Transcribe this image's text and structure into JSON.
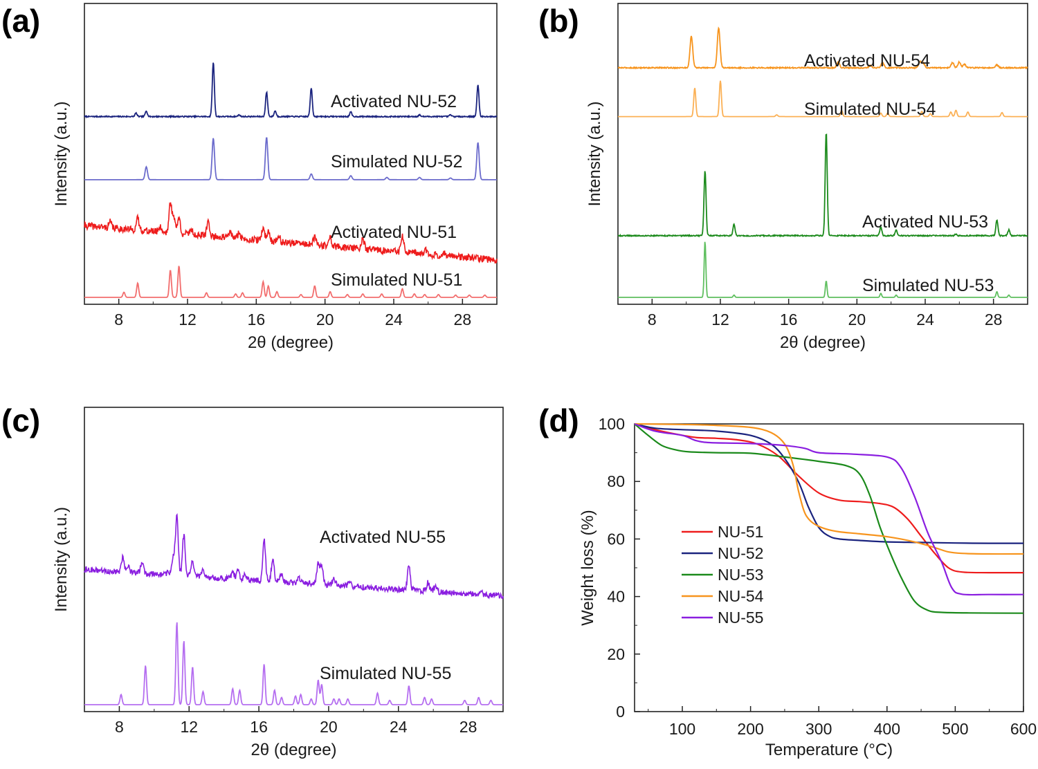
{
  "chart_data": [
    {
      "panel": "(a)",
      "type": "line",
      "xlabel": "2θ (degree)",
      "ylabel": "Intensity (a.u.)",
      "xlim": [
        6,
        30
      ],
      "xticks": [
        "8",
        "12",
        "16",
        "20",
        "24",
        "28"
      ],
      "series": [
        {
          "name": "Activated NU-52",
          "color": "#1a237e",
          "baseline": 0.63,
          "noise": 0.002,
          "sigma": 0.06,
          "peaks": [
            [
              9.0,
              0.012
            ],
            [
              9.6,
              0.02
            ],
            [
              13.5,
              0.19
            ],
            [
              15.0,
              0.006
            ],
            [
              16.6,
              0.085
            ],
            [
              17.1,
              0.02
            ],
            [
              19.2,
              0.1
            ],
            [
              21.5,
              0.016
            ],
            [
              25.5,
              0.006
            ],
            [
              27.3,
              0.006
            ],
            [
              28.9,
              0.11
            ]
          ]
        },
        {
          "name": "Simulated NU-52",
          "color": "#6b6bcc",
          "baseline": 0.41,
          "noise": 0.0,
          "sigma": 0.07,
          "peaks": [
            [
              9.6,
              0.045
            ],
            [
              13.5,
              0.145
            ],
            [
              16.6,
              0.148
            ],
            [
              19.2,
              0.02
            ],
            [
              21.5,
              0.014
            ],
            [
              23.6,
              0.008
            ],
            [
              25.5,
              0.008
            ],
            [
              27.3,
              0.006
            ],
            [
              28.9,
              0.13
            ]
          ]
        },
        {
          "name": "Activated NU-51",
          "color": "#ee1c1c",
          "baseline": 0.25,
          "slope": -0.12,
          "noise": 0.012,
          "sigma": 0.08,
          "peaks": [
            [
              7.5,
              0.02
            ],
            [
              9.1,
              0.04
            ],
            [
              10.4,
              0.02
            ],
            [
              11.0,
              0.1
            ],
            [
              11.2,
              0.06
            ],
            [
              11.5,
              0.055
            ],
            [
              12.2,
              0.02
            ],
            [
              13.2,
              0.05
            ],
            [
              14.5,
              0.02
            ],
            [
              15.0,
              0.02
            ],
            [
              16.4,
              0.045
            ],
            [
              16.7,
              0.035
            ],
            [
              17.3,
              0.02
            ],
            [
              19.4,
              0.025
            ],
            [
              20.3,
              0.03
            ],
            [
              22.2,
              0.035
            ],
            [
              24.5,
              0.055
            ],
            [
              25.9,
              0.015
            ],
            [
              27.0,
              0.01
            ]
          ]
        },
        {
          "name": "Simulated NU-51",
          "color": "#f26d6d",
          "baseline": 0.0,
          "noise": 0.0,
          "sigma": 0.06,
          "peaks": [
            [
              8.3,
              0.018
            ],
            [
              9.1,
              0.05
            ],
            [
              11.0,
              0.095
            ],
            [
              11.5,
              0.11
            ],
            [
              13.1,
              0.016
            ],
            [
              14.8,
              0.012
            ],
            [
              15.2,
              0.016
            ],
            [
              16.4,
              0.055
            ],
            [
              16.7,
              0.04
            ],
            [
              17.2,
              0.02
            ],
            [
              18.6,
              0.01
            ],
            [
              19.4,
              0.04
            ],
            [
              20.3,
              0.02
            ],
            [
              21.3,
              0.01
            ],
            [
              22.2,
              0.012
            ],
            [
              23.3,
              0.012
            ],
            [
              24.5,
              0.03
            ],
            [
              25.2,
              0.012
            ],
            [
              25.8,
              0.01
            ],
            [
              26.6,
              0.01
            ],
            [
              27.6,
              0.008
            ],
            [
              28.4,
              0.008
            ],
            [
              29.3,
              0.008
            ]
          ]
        }
      ]
    },
    {
      "panel": "(b)",
      "type": "line",
      "xlabel": "2θ (degree)",
      "ylabel": "Intensity (a.u.)",
      "xlim": [
        6,
        30
      ],
      "xticks": [
        "8",
        "12",
        "16",
        "20",
        "24",
        "28"
      ],
      "series": [
        {
          "name": "Activated NU-54",
          "color": "#f7941d",
          "baseline": 0.8,
          "noise": 0.002,
          "sigma": 0.08,
          "peaks": [
            [
              10.3,
              0.11
            ],
            [
              11.9,
              0.14
            ],
            [
              18.9,
              0.02
            ],
            [
              20.8,
              0.008
            ],
            [
              21.5,
              0.018
            ],
            [
              23.7,
              0.022
            ],
            [
              23.9,
              0.015
            ],
            [
              25.6,
              0.018
            ],
            [
              26.0,
              0.02
            ],
            [
              26.3,
              0.012
            ],
            [
              28.2,
              0.01
            ]
          ]
        },
        {
          "name": "Simulated NU-54",
          "color": "#fbb054",
          "baseline": 0.63,
          "noise": 0.0,
          "sigma": 0.06,
          "peaks": [
            [
              10.5,
              0.1
            ],
            [
              12.0,
              0.125
            ],
            [
              15.3,
              0.006
            ],
            [
              19.1,
              0.022
            ],
            [
              21.4,
              0.012
            ],
            [
              21.8,
              0.012
            ],
            [
              23.8,
              0.018
            ],
            [
              24.3,
              0.01
            ],
            [
              25.5,
              0.016
            ],
            [
              25.8,
              0.022
            ],
            [
              26.5,
              0.016
            ],
            [
              28.5,
              0.014
            ]
          ]
        },
        {
          "name": "Activated NU-53",
          "color": "#1b8a1b",
          "baseline": 0.215,
          "noise": 0.002,
          "sigma": 0.06,
          "peaks": [
            [
              11.1,
              0.225
            ],
            [
              12.8,
              0.04
            ],
            [
              18.2,
              0.36
            ],
            [
              21.4,
              0.03
            ],
            [
              22.3,
              0.02
            ],
            [
              25.8,
              0.006
            ],
            [
              28.2,
              0.055
            ],
            [
              28.9,
              0.02
            ]
          ]
        },
        {
          "name": "Simulated NU-53",
          "color": "#5fbf5f",
          "baseline": 0.0,
          "noise": 0.0,
          "sigma": 0.05,
          "peaks": [
            [
              11.1,
              0.195
            ],
            [
              12.8,
              0.008
            ],
            [
              18.2,
              0.057
            ],
            [
              21.4,
              0.014
            ],
            [
              22.3,
              0.008
            ],
            [
              28.2,
              0.02
            ],
            [
              28.9,
              0.008
            ]
          ]
        }
      ]
    },
    {
      "panel": "(c)",
      "type": "line",
      "xlabel": "2θ (degree)",
      "ylabel": "Intensity (a.u.)",
      "xlim": [
        6,
        30
      ],
      "xticks": [
        "8",
        "12",
        "16",
        "20",
        "24",
        "28"
      ],
      "series": [
        {
          "name": "Activated NU-55",
          "color": "#8a1ee0",
          "baseline": 0.465,
          "slope": -0.09,
          "noise": 0.01,
          "sigma": 0.08,
          "peaks": [
            [
              8.2,
              0.05
            ],
            [
              8.5,
              0.025
            ],
            [
              9.3,
              0.04
            ],
            [
              10.8,
              0.01
            ],
            [
              11.1,
              0.06
            ],
            [
              11.3,
              0.2
            ],
            [
              11.7,
              0.14
            ],
            [
              12.2,
              0.05
            ],
            [
              12.8,
              0.02
            ],
            [
              14.5,
              0.025
            ],
            [
              14.8,
              0.03
            ],
            [
              15.2,
              0.02
            ],
            [
              16.3,
              0.14
            ],
            [
              16.8,
              0.08
            ],
            [
              17.3,
              0.03
            ],
            [
              18.3,
              0.02
            ],
            [
              19.4,
              0.07
            ],
            [
              19.6,
              0.06
            ],
            [
              20.3,
              0.025
            ],
            [
              21.2,
              0.015
            ],
            [
              24.6,
              0.08
            ],
            [
              25.7,
              0.03
            ],
            [
              26.1,
              0.015
            ],
            [
              28.7,
              0.01
            ]
          ]
        },
        {
          "name": "Simulated NU-55",
          "color": "#b56ef0",
          "baseline": 0.0,
          "noise": 0.0,
          "sigma": 0.06,
          "peaks": [
            [
              8.1,
              0.035
            ],
            [
              9.5,
              0.135
            ],
            [
              11.3,
              0.285
            ],
            [
              11.7,
              0.22
            ],
            [
              12.2,
              0.13
            ],
            [
              12.8,
              0.045
            ],
            [
              14.5,
              0.055
            ],
            [
              14.9,
              0.05
            ],
            [
              16.3,
              0.14
            ],
            [
              16.9,
              0.05
            ],
            [
              17.3,
              0.025
            ],
            [
              18.1,
              0.03
            ],
            [
              18.4,
              0.035
            ],
            [
              19.0,
              0.02
            ],
            [
              19.4,
              0.085
            ],
            [
              19.6,
              0.07
            ],
            [
              20.3,
              0.02
            ],
            [
              20.6,
              0.02
            ],
            [
              21.1,
              0.02
            ],
            [
              22.8,
              0.04
            ],
            [
              23.5,
              0.015
            ],
            [
              24.6,
              0.065
            ],
            [
              25.5,
              0.025
            ],
            [
              25.9,
              0.02
            ],
            [
              27.8,
              0.015
            ],
            [
              28.6,
              0.025
            ],
            [
              29.3,
              0.015
            ]
          ]
        }
      ]
    },
    {
      "panel": "(d)",
      "type": "line",
      "xlabel": "Temperature (°C)",
      "ylabel": "Weight loss (%)",
      "xlim": [
        30,
        600
      ],
      "ylim": [
        0,
        100
      ],
      "xticks": [
        100,
        200,
        300,
        400,
        500,
        600
      ],
      "yticks": [
        0,
        20,
        40,
        60,
        80,
        100
      ],
      "legend": "center-left",
      "series": [
        {
          "name": "NU-51",
          "color": "#ee1c1c",
          "x": [
            30,
            60,
            90,
            120,
            150,
            180,
            210,
            240,
            270,
            300,
            330,
            360,
            390,
            410,
            430,
            450,
            470,
            490,
            510,
            550,
            600
          ],
          "y": [
            100,
            98,
            96.5,
            95.3,
            95,
            94.5,
            93,
            89,
            82,
            76,
            73.5,
            73,
            72.3,
            71,
            67,
            61,
            55,
            50,
            48.5,
            48.3,
            48.3
          ]
        },
        {
          "name": "NU-52",
          "color": "#1a237e",
          "x": [
            30,
            60,
            100,
            150,
            200,
            230,
            250,
            270,
            285,
            300,
            315,
            330,
            360,
            400,
            450,
            500,
            550,
            600
          ],
          "y": [
            100,
            98.5,
            98,
            97.5,
            96,
            93,
            88,
            80,
            71,
            64,
            61,
            60,
            59.5,
            59,
            58.8,
            58.6,
            58.5,
            58.5
          ]
        },
        {
          "name": "NU-53",
          "color": "#1b8a1b",
          "x": [
            30,
            50,
            70,
            90,
            110,
            150,
            200,
            250,
            300,
            340,
            360,
            375,
            390,
            405,
            420,
            440,
            460,
            480,
            520,
            600
          ],
          "y": [
            100,
            96,
            92.5,
            91,
            90.3,
            90,
            89.8,
            88.5,
            87,
            85.5,
            82.5,
            75,
            64,
            55,
            47,
            38.5,
            35.2,
            34.5,
            34.3,
            34.2
          ]
        },
        {
          "name": "NU-54",
          "color": "#f7941d",
          "x": [
            30,
            100,
            150,
            200,
            230,
            250,
            262,
            270,
            278,
            285,
            295,
            310,
            330,
            360,
            400,
            440,
            470,
            490,
            510,
            550,
            600
          ],
          "y": [
            100,
            99.8,
            99.5,
            98.8,
            97,
            93,
            86,
            77,
            70,
            67,
            65,
            63.5,
            62.5,
            61.8,
            60.8,
            59,
            57,
            55.5,
            55,
            54.8,
            54.8
          ]
        },
        {
          "name": "NU-55",
          "color": "#8a1ee0",
          "x": [
            30,
            60,
            100,
            120,
            140,
            180,
            220,
            250,
            280,
            300,
            350,
            400,
            420,
            440,
            460,
            480,
            495,
            510,
            550,
            600
          ],
          "y": [
            100,
            97.5,
            96,
            94.2,
            93.5,
            93.3,
            93,
            92.5,
            91.5,
            90,
            89.5,
            88.5,
            85,
            75,
            62,
            52,
            43,
            40.8,
            40.7,
            40.7
          ]
        }
      ]
    }
  ],
  "panels": {
    "a": {
      "label": "(a)"
    },
    "b": {
      "label": "(b)"
    },
    "c": {
      "label": "(c)"
    },
    "d": {
      "label": "(d)"
    }
  }
}
